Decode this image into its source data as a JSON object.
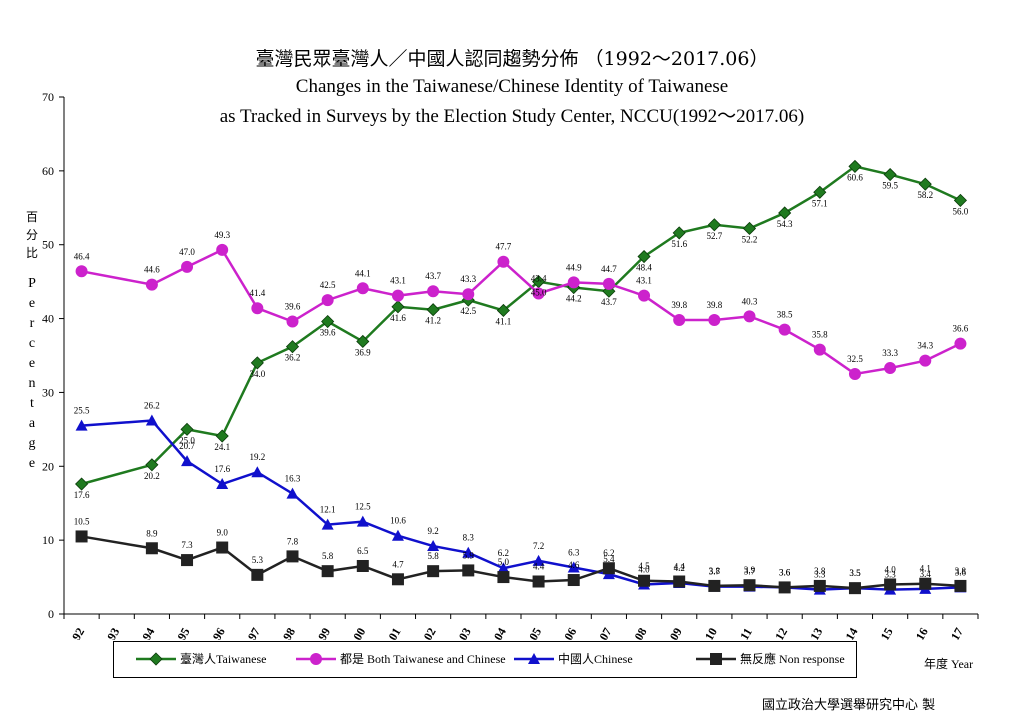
{
  "chart_data": {
    "type": "line",
    "title_zh": "臺灣民眾臺灣人／中國人認同趨勢分佈 （1992～2017.06）",
    "title_en_line1": "Changes in the Taiwanese/Chinese Identity of Taiwanese",
    "title_en_line2": "as Tracked in Surveys by the Election Study Center, NCCU(1992～2017.06)",
    "ylabel_zh": "百分比",
    "ylabel_en": "Percentage",
    "xlabel": "年度 Year",
    "ylim": [
      0,
      70
    ],
    "yticks": [
      0,
      10,
      20,
      30,
      40,
      50,
      60,
      70
    ],
    "categories": [
      "92",
      "93",
      "94",
      "95",
      "96",
      "97",
      "98",
      "99",
      "00",
      "01",
      "02",
      "03",
      "04",
      "05",
      "06",
      "07",
      "08",
      "09",
      "10",
      "11",
      "12",
      "13",
      "14",
      "15",
      "16",
      "17"
    ],
    "legend_position": "bottom",
    "series": [
      {
        "name": "臺灣人Taiwanese",
        "color": "#1f7a1f",
        "marker": "diamond",
        "values": [
          17.6,
          null,
          20.2,
          25.0,
          24.1,
          34.0,
          36.2,
          39.6,
          36.9,
          41.6,
          41.2,
          42.5,
          41.1,
          45.0,
          44.2,
          43.7,
          48.4,
          51.6,
          52.7,
          52.2,
          54.3,
          57.1,
          60.6,
          59.5,
          58.2,
          56.0
        ],
        "labels": [
          "17.6",
          "",
          "20.2",
          "25.0",
          "24.1",
          "34.0",
          "36.2",
          "39.6",
          "36.9",
          "41.6",
          "41.2",
          "42.5",
          "41.1",
          "45.0",
          "44.2",
          "43.7",
          "48.4",
          "51.6",
          "52.7",
          "52.2",
          "54.3",
          "57.1",
          "60.6",
          "59.5",
          "58.2",
          "56.0"
        ]
      },
      {
        "name": "都是 Both Taiwanese and Chinese",
        "color": "#cc22cc",
        "marker": "circle",
        "values": [
          46.4,
          null,
          44.6,
          47.0,
          49.3,
          41.4,
          39.6,
          42.5,
          44.1,
          43.1,
          43.7,
          43.3,
          47.7,
          43.4,
          44.9,
          44.7,
          43.1,
          39.8,
          39.8,
          40.3,
          38.5,
          35.8,
          32.5,
          33.3,
          34.3,
          36.6
        ],
        "labels": [
          "46.4",
          "",
          "44.6",
          "47.0",
          "49.3",
          "41.4",
          "39.6",
          "42.5",
          "44.1",
          "43.1",
          "43.7",
          "43.3",
          "47.7",
          "43.4",
          "44.9",
          "44.7",
          "43.1",
          "39.8",
          "39.8",
          "40.3",
          "38.5",
          "35.8",
          "32.5",
          "33.3",
          "34.3",
          "36.6"
        ]
      },
      {
        "name": "中國人Chinese",
        "color": "#1010cc",
        "marker": "triangle",
        "values": [
          25.5,
          null,
          26.2,
          20.7,
          17.6,
          19.2,
          16.3,
          12.1,
          12.5,
          10.6,
          9.2,
          8.3,
          6.2,
          7.2,
          6.3,
          5.4,
          4.0,
          4.2,
          3.7,
          3.7,
          3.6,
          3.3,
          3.5,
          3.3,
          3.4,
          3.6
        ],
        "labels": [
          "25.5",
          "",
          "26.2",
          "20.7",
          "17.6",
          "19.2",
          "16.3",
          "12.1",
          "12.5",
          "10.6",
          "9.2",
          "8.3",
          "6.2",
          "7.2",
          "6.3",
          "5.4",
          "4.0",
          "4.2",
          "3.7",
          "3.7",
          "3.6",
          "3.3",
          "3.5",
          "3.3",
          "3.4",
          "3.6"
        ]
      },
      {
        "name": "無反應 Non response",
        "color": "#222222",
        "marker": "square",
        "values": [
          10.5,
          null,
          8.9,
          7.3,
          9.0,
          5.3,
          7.8,
          5.8,
          6.5,
          4.7,
          5.8,
          5.9,
          5.0,
          4.4,
          4.6,
          6.2,
          4.5,
          4.4,
          3.8,
          3.9,
          3.6,
          3.8,
          3.5,
          4.0,
          4.1,
          3.8
        ],
        "labels": [
          "10.5",
          "",
          "8.9",
          "7.3",
          "9.0",
          "5.3",
          "7.8",
          "5.8",
          "6.5",
          "4.7",
          "5.8",
          "5.9",
          "5.0",
          "4.4",
          "4.6",
          "6.2",
          "4.5",
          "4.4",
          "3.8",
          "3.9",
          "3.6",
          "3.8",
          "3.5",
          "4.0",
          "4.1",
          "3.8"
        ]
      }
    ]
  },
  "credit": "國立政治大學選舉研究中心 製"
}
